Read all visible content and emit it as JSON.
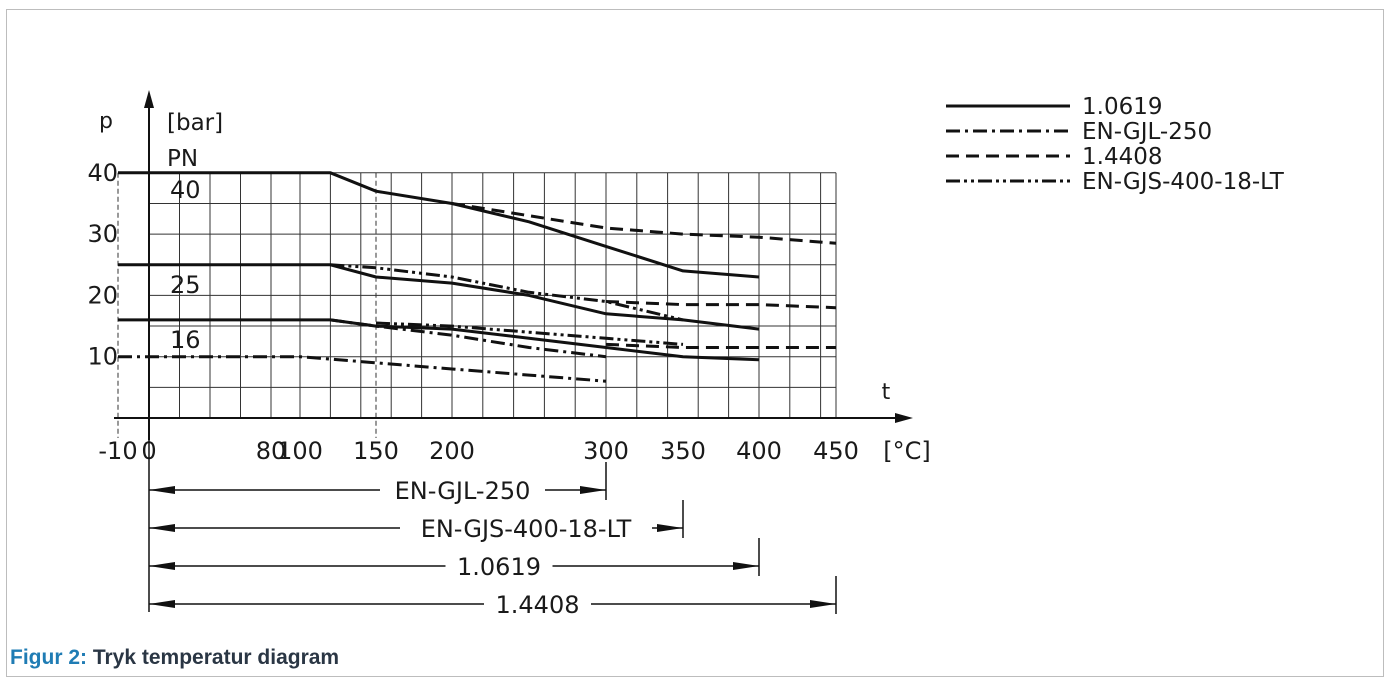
{
  "chart_data": {
    "type": "line",
    "y_label": "p",
    "y_unit": "[bar]",
    "x_label": "t",
    "x_unit": "[°C]",
    "pn_header": "PN",
    "x_ticks": [
      -10,
      0,
      80,
      100,
      150,
      200,
      300,
      350,
      400,
      450
    ],
    "y_ticks": [
      10,
      20,
      30,
      40
    ],
    "xlim": [
      -10,
      450
    ],
    "ylim": [
      0,
      40
    ],
    "grid": true,
    "legend_position": "top-right",
    "pn_levels": [
      {
        "label": "40",
        "value": 40
      },
      {
        "label": "25",
        "value": 25
      },
      {
        "label": "16",
        "value": 16
      }
    ],
    "styles": {
      "1.0619": "solid",
      "EN-GJL-250": "dashdot",
      "1.4408": "dashed",
      "EN-GJS-400-18-LT": "dashdotdot"
    },
    "series": [
      {
        "name": "1.0619",
        "pn": "40",
        "points": [
          [
            -10,
            40
          ],
          [
            120,
            40
          ],
          [
            150,
            37
          ],
          [
            200,
            35
          ],
          [
            250,
            32
          ],
          [
            300,
            28
          ],
          [
            350,
            24
          ],
          [
            400,
            23
          ]
        ]
      },
      {
        "name": "1.4408",
        "pn": "40",
        "points": [
          [
            200,
            35
          ],
          [
            250,
            33
          ],
          [
            300,
            31
          ],
          [
            350,
            30
          ],
          [
            400,
            29.5
          ],
          [
            450,
            28.5
          ]
        ]
      },
      {
        "name": "1.0619",
        "pn": "25",
        "points": [
          [
            -10,
            25
          ],
          [
            120,
            25
          ],
          [
            150,
            23
          ],
          [
            200,
            22
          ],
          [
            250,
            20
          ],
          [
            300,
            17
          ],
          [
            350,
            16
          ],
          [
            400,
            14.5
          ]
        ]
      },
      {
        "name": "EN-GJS-400-18-LT",
        "pn": "25",
        "points": [
          [
            120,
            25
          ],
          [
            150,
            24.5
          ],
          [
            200,
            23
          ],
          [
            250,
            20.5
          ],
          [
            300,
            19
          ],
          [
            350,
            16
          ]
        ]
      },
      {
        "name": "1.4408",
        "pn": "25",
        "points": [
          [
            300,
            19
          ],
          [
            350,
            18.5
          ],
          [
            400,
            18.5
          ],
          [
            450,
            18
          ]
        ]
      },
      {
        "name": "1.0619",
        "pn": "16",
        "points": [
          [
            -10,
            16
          ],
          [
            120,
            16
          ],
          [
            150,
            15
          ],
          [
            200,
            14.5
          ],
          [
            250,
            13
          ],
          [
            300,
            11.5
          ],
          [
            350,
            10
          ],
          [
            400,
            9.5
          ]
        ]
      },
      {
        "name": "EN-GJL-250",
        "pn": "16",
        "points": [
          [
            120,
            16
          ],
          [
            150,
            15
          ],
          [
            200,
            13.5
          ],
          [
            250,
            11.5
          ],
          [
            300,
            10
          ]
        ]
      },
      {
        "name": "EN-GJS-400-18-LT",
        "pn": "16",
        "points": [
          [
            150,
            15.5
          ],
          [
            200,
            15
          ],
          [
            250,
            14
          ],
          [
            300,
            13
          ],
          [
            350,
            12
          ]
        ]
      },
      {
        "name": "1.4408",
        "pn": "16",
        "points": [
          [
            300,
            12
          ],
          [
            350,
            11.5
          ],
          [
            400,
            11.5
          ],
          [
            450,
            11.5
          ]
        ]
      },
      {
        "name": "EN-GJL-250",
        "pn": "10",
        "points": [
          [
            -10,
            10
          ],
          [
            100,
            10
          ],
          [
            150,
            9
          ],
          [
            200,
            8
          ],
          [
            250,
            7
          ],
          [
            300,
            6
          ]
        ]
      }
    ],
    "legend": [
      "1.0619",
      "EN-GJL-250",
      "1.4408",
      "EN-GJS-400-18-LT"
    ],
    "ranges": [
      {
        "label": "EN-GJL-250",
        "from": 0,
        "to": 300
      },
      {
        "label": "EN-GJS-400-18-LT",
        "from": 0,
        "to": 350
      },
      {
        "label": "1.0619",
        "from": 0,
        "to": 400
      },
      {
        "label": "1.4408",
        "from": 0,
        "to": 450
      }
    ]
  },
  "caption": {
    "label": "Figur 2:",
    "text": "Tryk temperatur diagram"
  }
}
